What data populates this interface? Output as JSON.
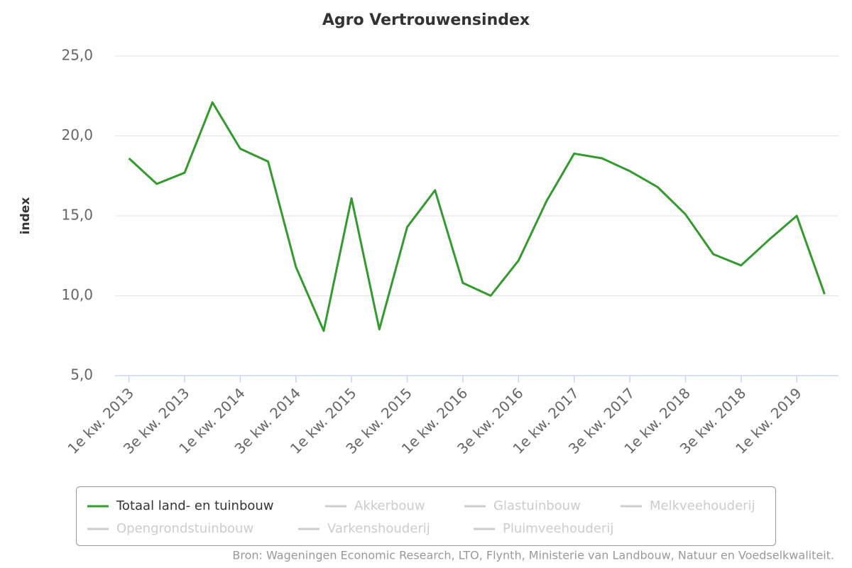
{
  "chart_data": {
    "type": "line",
    "title": "Agro Vertrouwensindex",
    "y_label": "index",
    "categories": [
      "1e kw. 2013",
      null,
      "3e kw. 2013",
      null,
      "1e kw. 2014",
      null,
      "3e kw. 2014",
      null,
      "1e kw. 2015",
      null,
      "3e kw. 2015",
      null,
      "1e kw. 2016",
      null,
      "3e kw. 2016",
      null,
      "1e kw. 2017",
      null,
      "3e kw. 2017",
      null,
      "1e kw. 2018",
      null,
      "3e kw. 2018",
      null,
      "1e kw. 2019",
      null
    ],
    "series": [
      {
        "name": "Totaal land- en tuinbouw",
        "color": "#339a2e",
        "values": [
          18.6,
          17.0,
          17.7,
          22.1,
          19.2,
          18.4,
          11.8,
          7.8,
          16.1,
          7.9,
          14.3,
          16.6,
          10.8,
          10.0,
          12.2,
          15.9,
          18.9,
          18.6,
          17.8,
          16.8,
          15.1,
          12.6,
          11.9,
          13.5,
          15.0,
          10.1
        ]
      }
    ],
    "inactive_legend": [
      "Akkerbouw",
      "Glastuinbouw",
      "Melkveehouderij",
      "Opengrondstuinbouw",
      "Varkenshouderij",
      "Pluimveehouderij"
    ],
    "ylim": [
      5,
      25
    ],
    "yticks": [
      {
        "value": 5,
        "label": "5,0"
      },
      {
        "value": 10,
        "label": "10,0"
      },
      {
        "value": 15,
        "label": "15,0"
      },
      {
        "value": 20,
        "label": "20,0"
      },
      {
        "value": 25,
        "label": "25,0"
      }
    ],
    "grid": true,
    "source": "Bron: Wageningen Economic Research, LTO, Flynth, Ministerie van Landbouw, Natuur en Voedselkwaliteit."
  }
}
